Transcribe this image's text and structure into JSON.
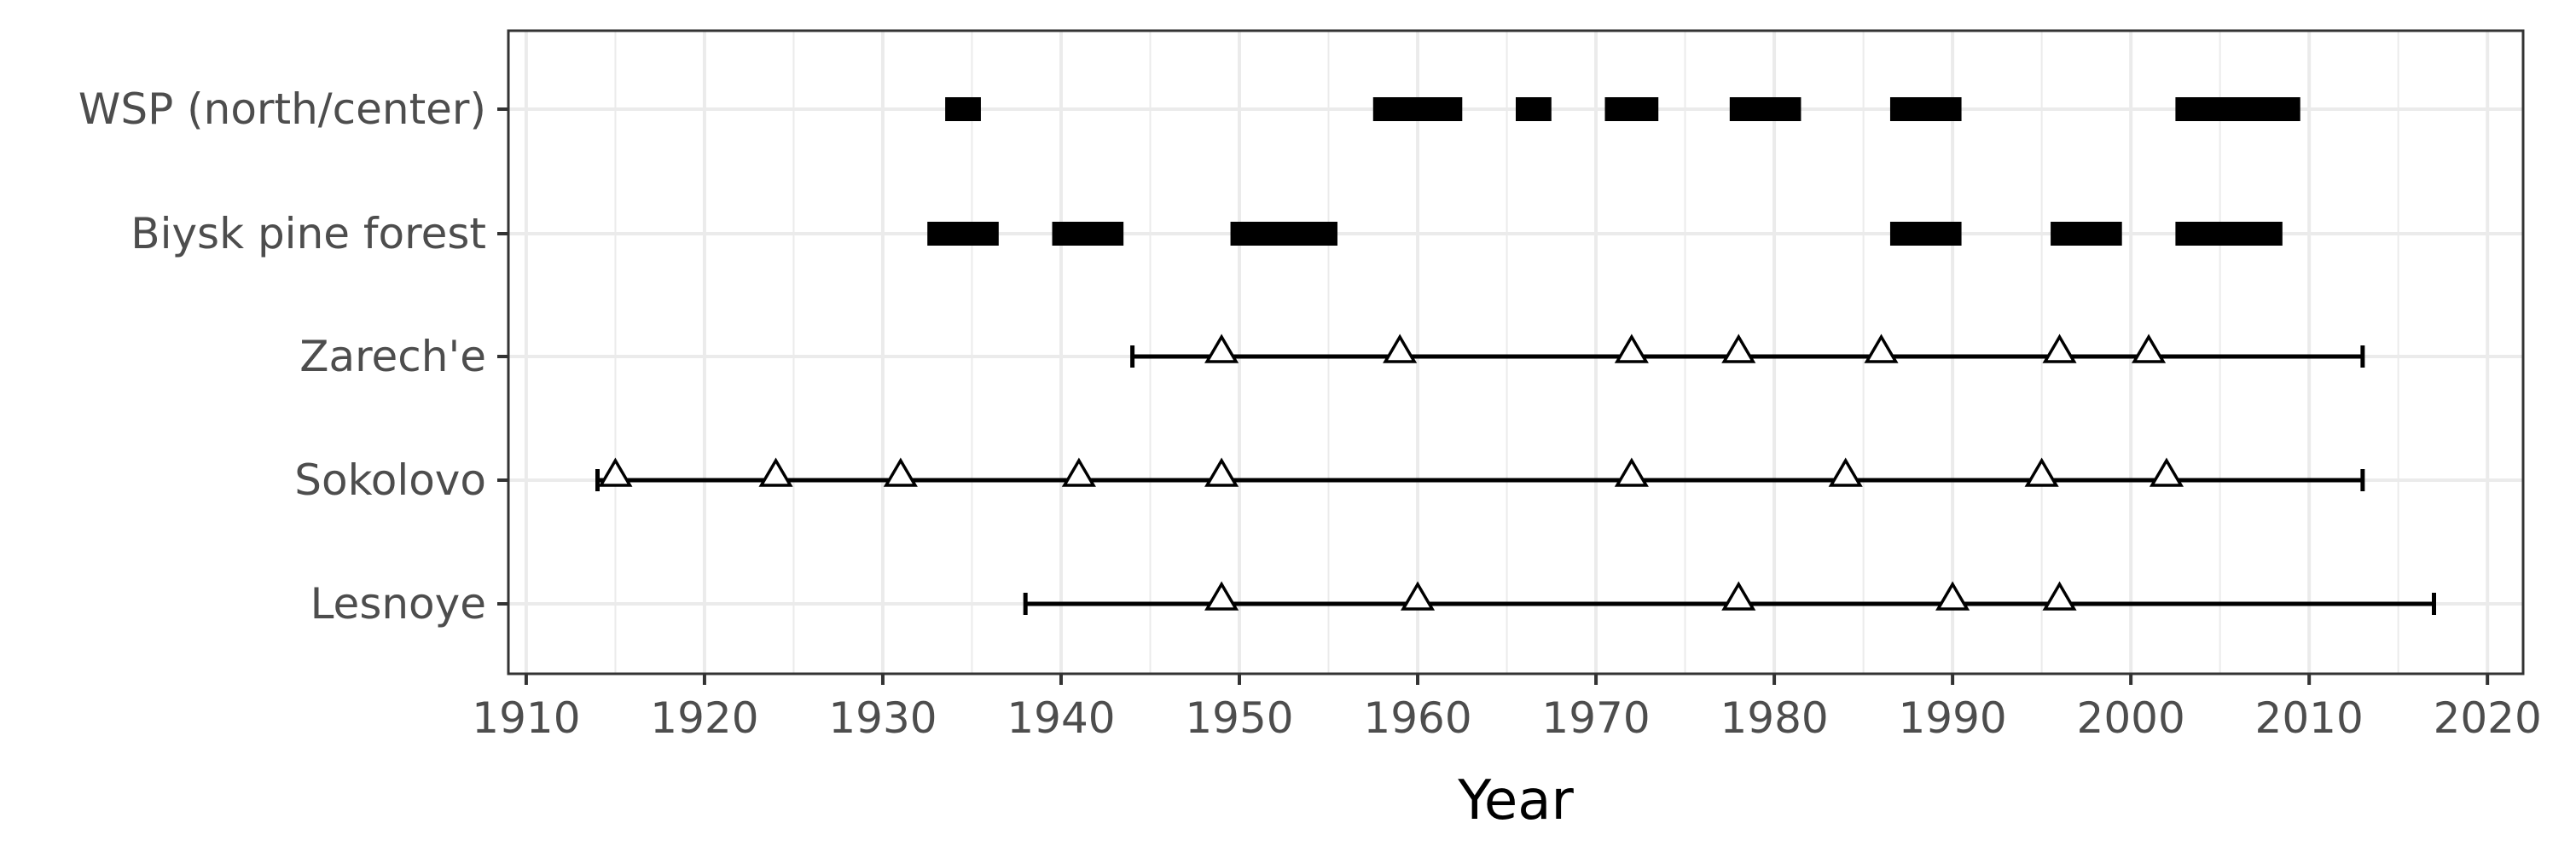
{
  "chart_data": {
    "type": "timeline",
    "xlabel": "Year",
    "ylabel": "",
    "xlim": [
      1909,
      2022
    ],
    "x_ticks": [
      1910,
      1920,
      1930,
      1940,
      1950,
      1960,
      1970,
      1980,
      1990,
      2000,
      2010,
      2020
    ],
    "x_tick_labels": [
      "1910",
      "1920",
      "1930",
      "1940",
      "1950",
      "1960",
      "1970",
      "1980",
      "1990",
      "2000",
      "2010",
      "2020"
    ],
    "grid": true,
    "categories": [
      "WSP (north/center)",
      "Biysk pine forest",
      "Zarech'e",
      "Sokolovo",
      "Lesnoye"
    ],
    "intervals": [
      {
        "category": "WSP (north/center)",
        "periods": [
          [
            1933.5,
            1935.5
          ],
          [
            1957.5,
            1962.5
          ],
          [
            1965.5,
            1967.5
          ],
          [
            1970.5,
            1973.5
          ],
          [
            1977.5,
            1981.5
          ],
          [
            1986.5,
            1990.5
          ],
          [
            2002.5,
            2009.5
          ]
        ]
      },
      {
        "category": "Biysk pine forest",
        "periods": [
          [
            1932.5,
            1936.5
          ],
          [
            1939.5,
            1943.5
          ],
          [
            1949.5,
            1955.5
          ],
          [
            1986.5,
            1990.5
          ],
          [
            1995.5,
            1999.5
          ],
          [
            2002.5,
            2008.5
          ]
        ]
      }
    ],
    "records": [
      {
        "category": "Zarech'e",
        "range": [
          1944,
          2013
        ],
        "events": [
          1949,
          1959,
          1972,
          1978,
          1986,
          1996,
          2001
        ]
      },
      {
        "category": "Sokolovo",
        "range": [
          1914,
          2013
        ],
        "events": [
          1915,
          1924,
          1931,
          1941,
          1949,
          1972,
          1984,
          1995,
          2002
        ]
      },
      {
        "category": "Lesnoye",
        "range": [
          1938,
          2017
        ],
        "events": [
          1949,
          1960,
          1978,
          1990,
          1996
        ]
      }
    ],
    "colors": {
      "bars": "#000000",
      "lines": "#000000",
      "grid": "#ebebeb",
      "panel_border": "#333333"
    }
  }
}
